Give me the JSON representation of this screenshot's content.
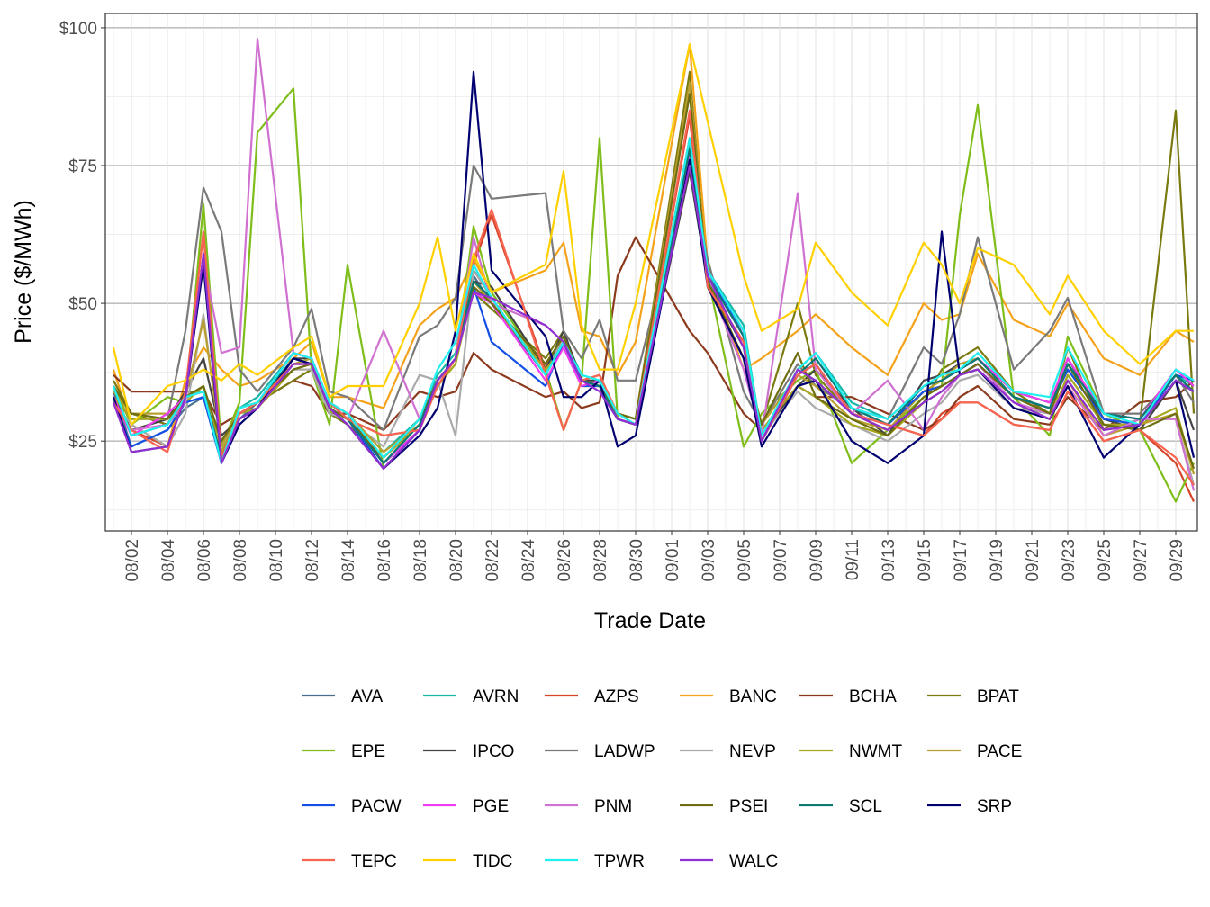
{
  "chart_data": {
    "type": "line",
    "x_label": "Trade Date",
    "y_label": "Price ($/MWh)",
    "x": [
      "08/01",
      "08/02",
      "08/04",
      "08/05",
      "08/06",
      "08/07",
      "08/08",
      "08/09",
      "08/11",
      "08/12",
      "08/13",
      "08/14",
      "08/16",
      "08/18",
      "08/19",
      "08/20",
      "08/21",
      "08/22",
      "08/25",
      "08/26",
      "08/27",
      "08/28",
      "08/29",
      "08/30",
      "09/02",
      "09/03",
      "09/05",
      "09/06",
      "09/08",
      "09/09",
      "09/11",
      "09/13",
      "09/15",
      "09/16",
      "09/17",
      "09/18",
      "09/20",
      "09/22",
      "09/23",
      "09/25",
      "09/27",
      "09/29",
      "09/30"
    ],
    "xlim": [
      "08/01",
      "09/30"
    ],
    "xticks": [
      "08/02",
      "08/04",
      "08/06",
      "08/08",
      "08/10",
      "08/12",
      "08/14",
      "08/16",
      "08/18",
      "08/20",
      "08/22",
      "08/24",
      "08/26",
      "08/28",
      "08/30",
      "09/01",
      "09/03",
      "09/05",
      "09/07",
      "09/09",
      "09/11",
      "09/13",
      "09/15",
      "09/17",
      "09/19",
      "09/21",
      "09/23",
      "09/25",
      "09/27",
      "09/29"
    ],
    "ylim": [
      8.7,
      102.6
    ],
    "yticks": [
      {
        "value": 25,
        "label": "$25"
      },
      {
        "value": 50,
        "label": "$50"
      },
      {
        "value": 75,
        "label": "$75"
      },
      {
        "value": 100,
        "label": "$100"
      }
    ],
    "grid": true,
    "legend_position": "bottom",
    "series": [
      {
        "name": "AVA",
        "color": "#4a6f8f",
        "values": [
          34,
          24,
          27,
          31,
          33,
          21,
          29,
          32,
          40,
          39,
          31,
          29,
          21,
          27,
          36,
          40,
          55,
          50,
          37,
          43,
          36,
          35,
          29,
          28,
          77,
          55,
          45,
          25,
          37,
          40,
          31,
          28,
          34,
          35,
          37,
          39,
          33,
          31,
          38,
          29,
          28,
          36,
          34
        ]
      },
      {
        "name": "AVRN",
        "color": "#1ab5a8",
        "values": [
          35,
          26,
          28,
          33,
          34,
          21,
          31,
          33,
          41,
          40,
          32,
          30,
          23,
          29,
          37,
          41,
          56,
          52,
          38,
          44,
          37,
          36,
          30,
          29,
          79,
          56,
          46,
          26,
          38,
          41,
          32,
          29,
          35,
          36,
          38,
          40,
          34,
          32,
          39,
          30,
          29,
          37,
          35
        ]
      },
      {
        "name": "AZPS",
        "color": "#d6452a",
        "values": [
          33,
          27,
          24,
          34,
          63,
          22,
          31,
          32,
          39,
          39,
          32,
          29,
          26,
          27,
          35,
          40,
          57,
          66,
          38,
          27,
          36,
          37,
          29,
          28,
          84,
          53,
          43,
          26,
          37,
          39,
          30,
          28,
          26,
          30,
          32,
          32,
          28,
          27,
          34,
          25,
          27,
          21,
          14
        ]
      },
      {
        "name": "BANC",
        "color": "#f4a21a",
        "values": [
          38,
          28,
          24,
          36,
          42,
          38,
          35,
          36,
          40,
          43,
          33,
          33,
          31,
          46,
          49,
          51,
          58,
          52,
          56,
          61,
          45,
          44,
          37,
          43,
          97,
          57,
          38,
          40,
          45,
          48,
          42,
          37,
          50,
          47,
          48,
          59,
          47,
          44,
          50,
          40,
          37,
          45,
          43
        ]
      },
      {
        "name": "BCHA",
        "color": "#8c3a1e",
        "values": [
          37,
          34,
          34,
          34,
          34,
          28,
          30,
          32,
          36,
          35,
          30,
          30,
          27,
          34,
          33,
          34,
          41,
          38,
          33,
          34,
          31,
          32,
          55,
          62,
          45,
          41,
          30,
          27,
          35,
          33,
          33,
          30,
          27,
          29,
          33,
          35,
          29,
          28,
          33,
          27,
          32,
          33,
          36
        ]
      },
      {
        "name": "BPAT",
        "color": "#7a7a10",
        "values": [
          36,
          30,
          28,
          34,
          34,
          25,
          30,
          32,
          36,
          38,
          30,
          28,
          22,
          28,
          36,
          40,
          52,
          49,
          40,
          45,
          36,
          35,
          30,
          29,
          92,
          53,
          40,
          28,
          50,
          37,
          30,
          27,
          32,
          38,
          40,
          42,
          34,
          30,
          42,
          27,
          28,
          85,
          30
        ]
      },
      {
        "name": "EPE",
        "color": "#7fbe1a",
        "values": [
          35,
          28,
          33,
          32,
          68,
          24,
          32,
          81,
          89,
          38,
          28,
          57,
          20,
          27,
          36,
          40,
          64,
          52,
          38,
          27,
          36,
          80,
          29,
          28,
          80,
          55,
          24,
          30,
          36,
          38,
          21,
          27,
          33,
          35,
          66,
          86,
          33,
          26,
          44,
          30,
          27,
          14,
          21
        ]
      },
      {
        "name": "IPCO",
        "color": "#444444",
        "values": [
          33,
          27,
          29,
          34,
          40,
          26,
          29,
          31,
          40,
          40,
          32,
          30,
          21,
          27,
          36,
          40,
          54,
          53,
          38,
          45,
          36,
          36,
          29,
          28,
          74,
          54,
          42,
          26,
          35,
          38,
          31,
          26,
          36,
          37,
          39,
          40,
          34,
          32,
          40,
          29,
          27,
          36,
          27
        ]
      },
      {
        "name": "LADWP",
        "color": "#7a7a7a",
        "values": [
          33,
          29,
          29,
          45,
          71,
          63,
          38,
          34,
          42,
          49,
          34,
          33,
          27,
          44,
          46,
          51,
          75,
          69,
          70,
          45,
          40,
          47,
          36,
          36,
          75,
          58,
          34,
          28,
          39,
          35,
          31,
          29,
          42,
          39,
          48,
          62,
          38,
          45,
          51,
          30,
          30,
          37,
          32
        ]
      },
      {
        "name": "NEVP",
        "color": "#aaaaaa",
        "values": [
          32,
          28,
          24,
          30,
          48,
          23,
          31,
          32,
          38,
          38,
          30,
          29,
          24,
          37,
          36,
          26,
          56,
          51,
          37,
          44,
          36,
          35,
          30,
          29,
          78,
          54,
          40,
          26,
          34,
          31,
          28,
          25,
          30,
          32,
          36,
          37,
          31,
          30,
          36,
          27,
          29,
          29,
          17
        ]
      },
      {
        "name": "NWMT",
        "color": "#a8a820",
        "values": [
          33,
          29,
          29,
          32,
          35,
          23,
          30,
          31,
          38,
          39,
          31,
          29,
          22,
          28,
          35,
          39,
          53,
          50,
          38,
          42,
          35,
          35,
          30,
          29,
          80,
          54,
          40,
          27,
          35,
          33,
          28,
          26,
          32,
          34,
          37,
          38,
          32,
          29,
          37,
          28,
          28,
          31,
          19
        ]
      },
      {
        "name": "PACE",
        "color": "#b8a030",
        "values": [
          34,
          30,
          30,
          33,
          47,
          24,
          31,
          32,
          39,
          40,
          32,
          30,
          23,
          28,
          36,
          40,
          54,
          50,
          39,
          44,
          36,
          35,
          30,
          29,
          90,
          53,
          40,
          28,
          37,
          35,
          29,
          27,
          34,
          36,
          39,
          40,
          33,
          30,
          36,
          26,
          28,
          30,
          19
        ]
      },
      {
        "name": "PACW",
        "color": "#1450e6",
        "values": [
          32,
          24,
          27,
          32,
          33,
          21,
          29,
          31,
          40,
          39,
          31,
          29,
          20,
          27,
          36,
          40,
          53,
          43,
          35,
          43,
          35,
          35,
          29,
          28,
          76,
          56,
          44,
          25,
          37,
          39,
          30,
          28,
          34,
          35,
          37,
          39,
          33,
          31,
          38,
          29,
          28,
          37,
          36
        ]
      },
      {
        "name": "PGE",
        "color": "#f03cf0",
        "values": [
          33,
          26,
          30,
          33,
          34,
          22,
          30,
          32,
          41,
          40,
          31,
          29,
          21,
          27,
          36,
          40,
          52,
          50,
          36,
          42,
          35,
          36,
          29,
          28,
          77,
          55,
          44,
          25,
          37,
          39,
          30,
          28,
          35,
          36,
          38,
          40,
          34,
          32,
          40,
          30,
          29,
          38,
          35
        ]
      },
      {
        "name": "PNM",
        "color": "#d070d0",
        "values": [
          32,
          27,
          28,
          32,
          58,
          41,
          42,
          98,
          41,
          40,
          32,
          29,
          45,
          29,
          36,
          40,
          62,
          50,
          46,
          43,
          36,
          35,
          29,
          28,
          80,
          54,
          38,
          26,
          70,
          38,
          30,
          36,
          27,
          33,
          37,
          39,
          32,
          30,
          35,
          26,
          29,
          29,
          16
        ]
      },
      {
        "name": "PSEI",
        "color": "#6e6e10",
        "values": [
          35,
          30,
          29,
          33,
          35,
          25,
          30,
          32,
          38,
          39,
          31,
          29,
          22,
          29,
          36,
          40,
          53,
          50,
          39,
          44,
          36,
          35,
          30,
          29,
          88,
          54,
          40,
          28,
          41,
          33,
          29,
          26,
          33,
          35,
          37,
          39,
          33,
          30,
          39,
          28,
          27,
          30,
          20
        ]
      },
      {
        "name": "SCL",
        "color": "#0a7a72",
        "values": [
          35,
          26,
          28,
          33,
          34,
          22,
          30,
          32,
          40,
          39,
          32,
          29,
          21,
          28,
          36,
          40,
          54,
          51,
          37,
          43,
          36,
          35,
          29,
          28,
          78,
          55,
          44,
          25,
          37,
          40,
          31,
          28,
          35,
          36,
          38,
          40,
          33,
          31,
          39,
          30,
          29,
          37,
          34
        ]
      },
      {
        "name": "SRP",
        "color": "#000070",
        "values": [
          33,
          23,
          24,
          33,
          57,
          21,
          28,
          31,
          40,
          39,
          31,
          28,
          20,
          26,
          31,
          45,
          92,
          56,
          44,
          33,
          33,
          36,
          24,
          26,
          76,
          53,
          40,
          24,
          35,
          36,
          25,
          21,
          26,
          63,
          37,
          38,
          31,
          29,
          35,
          22,
          28,
          36,
          22
        ]
      },
      {
        "name": "TEPC",
        "color": "#f86450",
        "values": [
          32,
          27,
          23,
          34,
          63,
          22,
          30,
          32,
          39,
          39,
          32,
          29,
          26,
          27,
          35,
          40,
          58,
          67,
          37,
          27,
          36,
          37,
          30,
          28,
          85,
          53,
          43,
          25,
          37,
          39,
          30,
          28,
          26,
          29,
          32,
          32,
          28,
          27,
          34,
          25,
          27,
          22,
          17
        ]
      },
      {
        "name": "TIDC",
        "color": "#ffd000",
        "values": [
          42,
          28,
          35,
          36,
          38,
          36,
          39,
          37,
          42,
          44,
          33,
          35,
          35,
          50,
          62,
          45,
          59,
          52,
          57,
          74,
          46,
          38,
          38,
          50,
          97,
          83,
          55,
          45,
          49,
          61,
          52,
          46,
          61,
          57,
          50,
          60,
          57,
          48,
          55,
          45,
          39,
          45,
          45
        ]
      },
      {
        "name": "TPWR",
        "color": "#20f0f0",
        "values": [
          35,
          26,
          28,
          33,
          34,
          21,
          31,
          32,
          41,
          40,
          32,
          30,
          22,
          29,
          38,
          43,
          57,
          51,
          37,
          43,
          37,
          36,
          30,
          28,
          80,
          56,
          45,
          26,
          38,
          41,
          31,
          29,
          35,
          37,
          38,
          41,
          34,
          33,
          42,
          30,
          28,
          38,
          36
        ]
      },
      {
        "name": "WALC",
        "color": "#9030d0",
        "values": [
          32,
          23,
          24,
          33,
          59,
          21,
          29,
          31,
          39,
          39,
          31,
          28,
          20,
          27,
          36,
          40,
          52,
          51,
          46,
          43,
          36,
          34,
          29,
          28,
          75,
          55,
          42,
          25,
          38,
          36,
          30,
          27,
          32,
          34,
          37,
          38,
          32,
          29,
          36,
          27,
          28,
          36,
          34
        ]
      }
    ]
  }
}
